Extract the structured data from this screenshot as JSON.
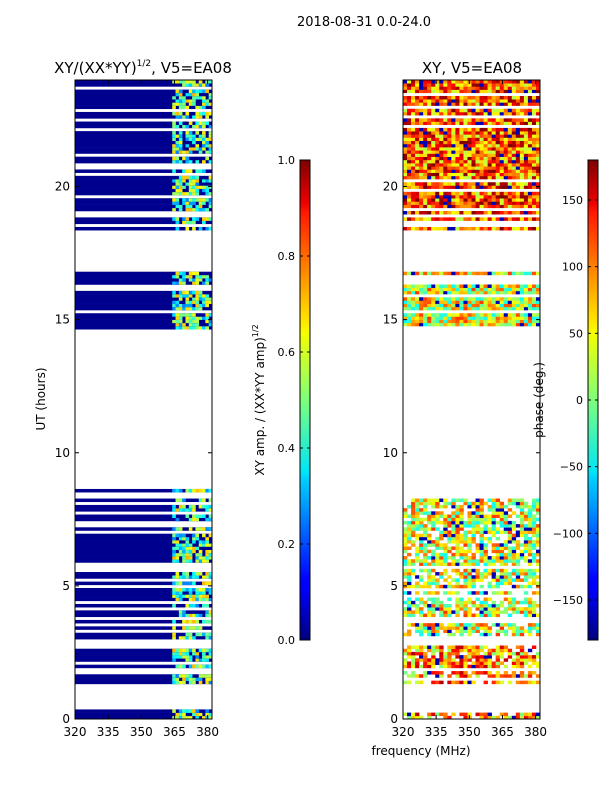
{
  "chart_data": {
    "suptitle": "2018-08-31 0.0-24.0",
    "xlabel": "frequency (MHz)",
    "panels": [
      {
        "id": "left",
        "type": "heatmap",
        "title": "XY/(XX*YY)",
        "title_sup": "1/2",
        "title_suffix": ", V5=EA08",
        "ylabel": "UT (hours)",
        "xlim": [
          320,
          382
        ],
        "ylim": [
          0,
          24
        ],
        "xticks": [
          320,
          335,
          350,
          365,
          380
        ],
        "yticks": [
          0,
          5,
          10,
          15,
          20
        ],
        "colorbar": {
          "label": "XY amp. / (XX*YY amp)",
          "label_sup": "1/2",
          "range": [
            0.0,
            1.0
          ],
          "ticks": [
            "0.0",
            "0.2",
            "0.4",
            "0.6",
            "0.8",
            "1.0"
          ],
          "tick_values": [
            0.0,
            0.2,
            0.4,
            0.6,
            0.8,
            1.0
          ]
        }
      },
      {
        "id": "right",
        "type": "heatmap",
        "title": "XY, V5=EA08",
        "xlim": [
          320,
          382
        ],
        "ylim": [
          0,
          24
        ],
        "xticks": [
          320,
          335,
          350,
          365,
          380
        ],
        "yticks": [
          0,
          5,
          10,
          15,
          20
        ],
        "colorbar": {
          "label": "phase (deg.)",
          "range": [
            -180,
            180
          ],
          "ticks": [
            "−150",
            "−100",
            "−50",
            "0",
            "50",
            "100",
            "150"
          ],
          "tick_values": [
            -150,
            -100,
            -50,
            0,
            50,
            100,
            150
          ]
        }
      }
    ],
    "data_time_ranges_hours": [
      [
        0.0,
        0.4
      ],
      [
        1.3,
        1.8
      ],
      [
        1.9,
        2.8
      ],
      [
        3.0,
        5.7
      ],
      [
        5.8,
        8.6
      ],
      [
        14.6,
        16.8
      ],
      [
        18.4,
        24.0
      ]
    ],
    "amplitude_active_freq_range_mhz": [
      364,
      382
    ]
  }
}
